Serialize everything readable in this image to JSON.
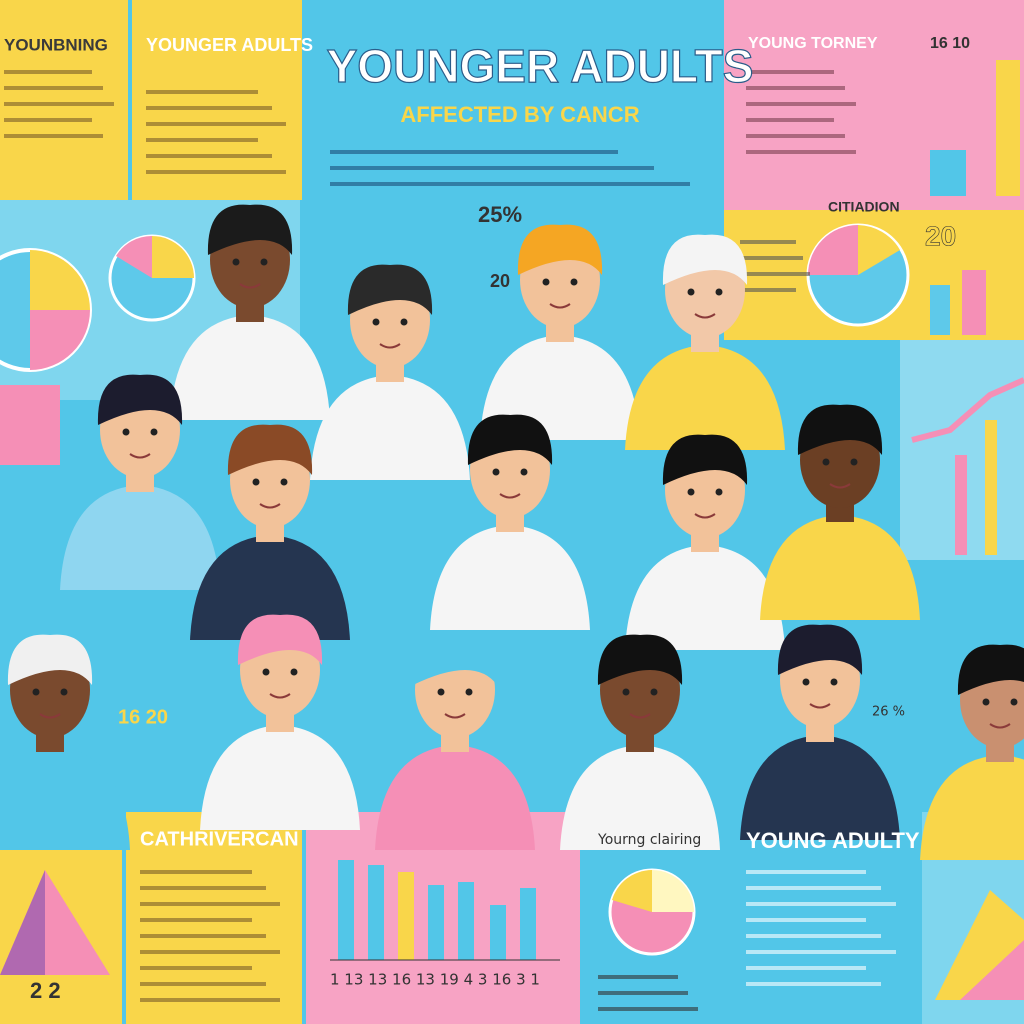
{
  "header": {
    "title": "YOUNGER ADULTS",
    "subtitle": "AFFECTED BY CANCR"
  },
  "panels": {
    "top_left": {
      "title": "YOUNBNING"
    },
    "top_left_2": {
      "title": "YOUNGER ADULTS"
    },
    "top_right": {
      "title": "YOUNG TORNEY",
      "number": "16 10"
    },
    "right_mid": {
      "label": "CITIADION",
      "number": "20"
    },
    "bottom_left": {
      "title": "CATHRIVERCAN",
      "axis": "2  2"
    },
    "bottom_mid": {
      "axis": "1 13  13  16  13  19  4 3  16  3 1"
    },
    "bottom_center": {
      "title": "Yourng clairing"
    },
    "bottom_right": {
      "title": "YOUNG ADULTY"
    }
  },
  "stats": [
    "25%",
    "20",
    "16 20",
    "26 %"
  ]
}
